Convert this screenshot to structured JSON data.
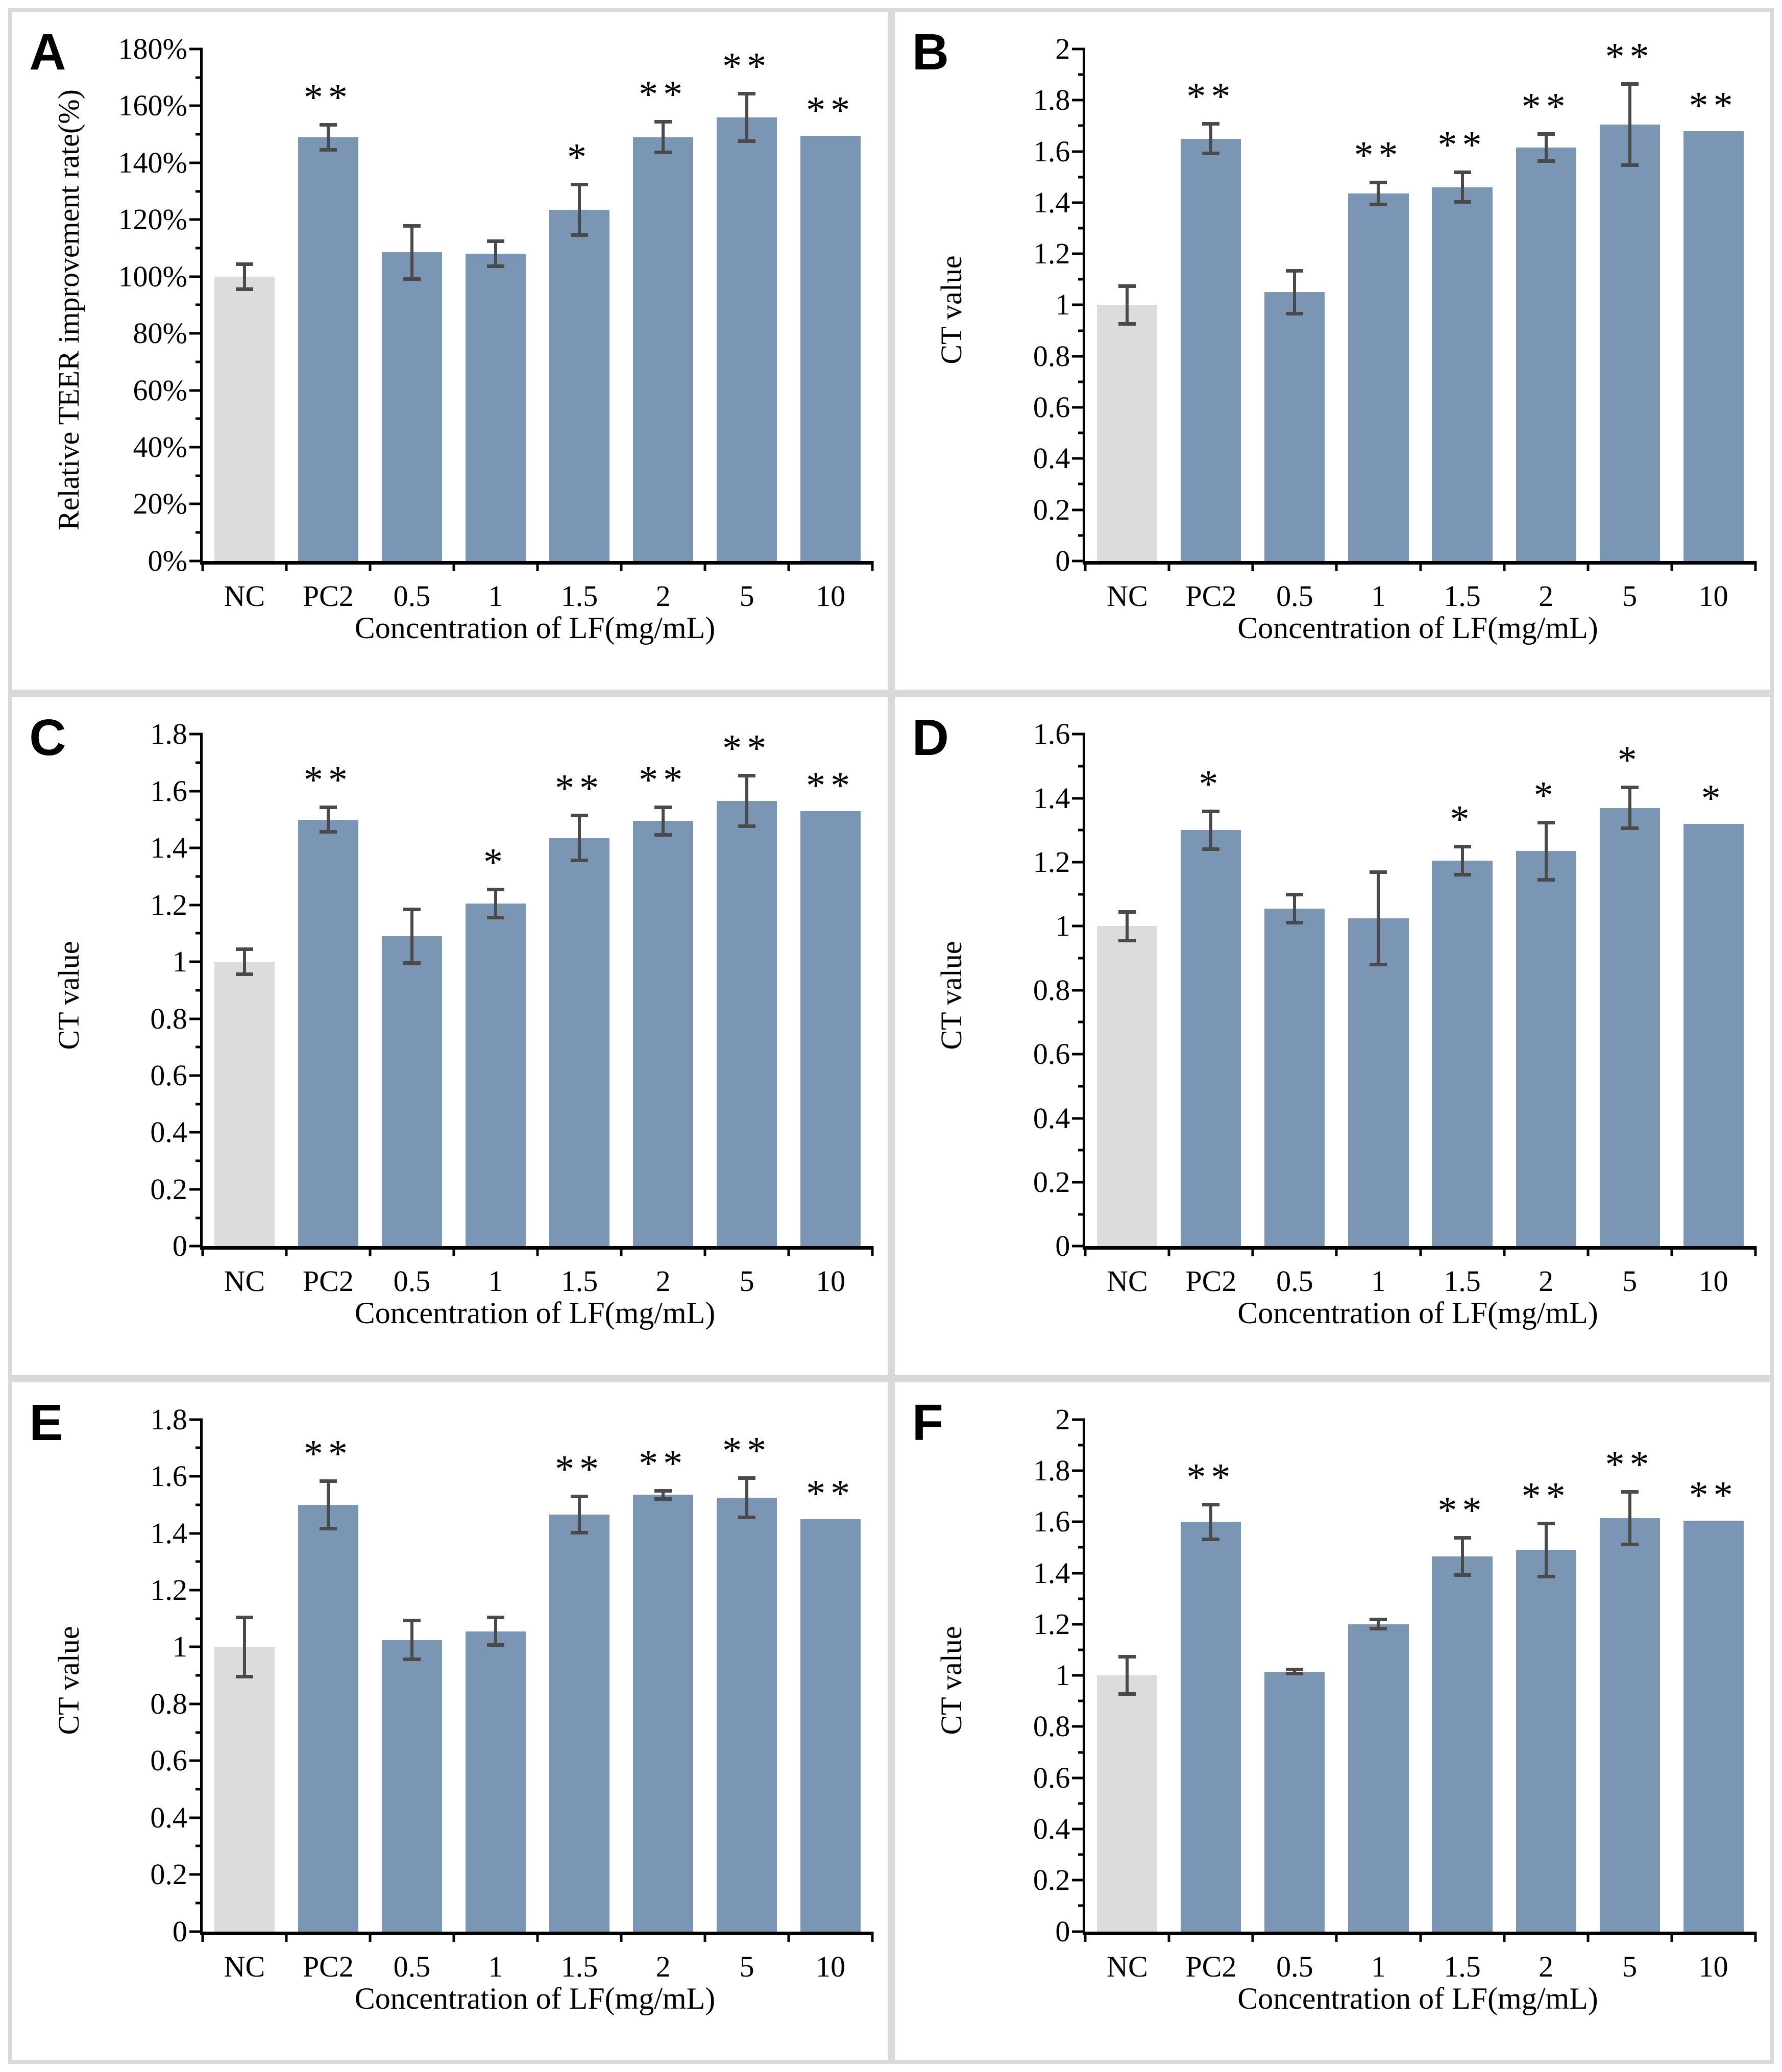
{
  "colors": {
    "bar": "#7b96b5",
    "nc_bar": "#dcdcdc",
    "error": "#4a4a4a",
    "axis": "#000000",
    "frame": "#d9d9d9"
  },
  "chart_data": [
    {
      "panel": "A",
      "type": "bar",
      "ylabel": "Relative TEER improvement rate(%)",
      "xlabel": "Concentration of LF(mg/mL)",
      "categories": [
        "NC",
        "PC2",
        "0.5",
        "1",
        "1.5",
        "2",
        "5",
        "10"
      ],
      "values": [
        100,
        149,
        108.5,
        108,
        123.5,
        149,
        156,
        149.5
      ],
      "errors": [
        5,
        5,
        10,
        5,
        9.5,
        6,
        9,
        null
      ],
      "sig": [
        "",
        "**",
        "",
        "",
        "*",
        "**",
        "**",
        "**"
      ],
      "ylim": [
        0,
        180
      ],
      "ytick_step": 20,
      "ytick_suffix": "%",
      "grid": false,
      "legend": null
    },
    {
      "panel": "B",
      "type": "bar",
      "ylabel": "CT value",
      "xlabel": "Concentration of LF(mg/mL)",
      "categories": [
        "NC",
        "PC2",
        "0.5",
        "1",
        "1.5",
        "2",
        "5",
        "10"
      ],
      "values": [
        1.0,
        1.65,
        1.05,
        1.435,
        1.46,
        1.615,
        1.705,
        1.68
      ],
      "errors": [
        0.08,
        0.065,
        0.09,
        0.05,
        0.065,
        0.06,
        0.165,
        null
      ],
      "sig": [
        "",
        "**",
        "",
        "**",
        "**",
        "**",
        "**",
        "**"
      ],
      "ylim": [
        0,
        2
      ],
      "ytick_step": 0.2,
      "ytick_suffix": "",
      "grid": false,
      "legend": null
    },
    {
      "panel": "C",
      "type": "bar",
      "ylabel": "CT value",
      "xlabel": "Concentration of LF(mg/mL)",
      "categories": [
        "NC",
        "PC2",
        "0.5",
        "1",
        "1.5",
        "2",
        "5",
        "10"
      ],
      "values": [
        1.0,
        1.5,
        1.09,
        1.205,
        1.435,
        1.495,
        1.565,
        1.53
      ],
      "errors": [
        0.05,
        0.05,
        0.1,
        0.055,
        0.085,
        0.055,
        0.095,
        null
      ],
      "sig": [
        "",
        "**",
        "",
        "*",
        "**",
        "**",
        "**",
        "**"
      ],
      "ylim": [
        0,
        1.8
      ],
      "ytick_step": 0.2,
      "ytick_suffix": "",
      "grid": false,
      "legend": null
    },
    {
      "panel": "D",
      "type": "bar",
      "ylabel": "CT value",
      "xlabel": "Concentration of LF(mg/mL)",
      "categories": [
        "NC",
        "PC2",
        "0.5",
        "1",
        "1.5",
        "2",
        "5",
        "10"
      ],
      "values": [
        1.0,
        1.3,
        1.055,
        1.025,
        1.205,
        1.235,
        1.37,
        1.32
      ],
      "errors": [
        0.05,
        0.065,
        0.05,
        0.15,
        0.05,
        0.095,
        0.07,
        null
      ],
      "sig": [
        "",
        "*",
        "",
        "",
        "*",
        "*",
        "*",
        "*"
      ],
      "ylim": [
        0,
        1.6
      ],
      "ytick_step": 0.2,
      "ytick_suffix": "",
      "grid": false,
      "legend": null
    },
    {
      "panel": "E",
      "type": "bar",
      "ylabel": "CT value",
      "xlabel": "Concentration of LF(mg/mL)",
      "categories": [
        "NC",
        "PC2",
        "0.5",
        "1",
        "1.5",
        "2",
        "5",
        "10"
      ],
      "values": [
        1.0,
        1.5,
        1.025,
        1.055,
        1.465,
        1.535,
        1.525,
        1.45
      ],
      "errors": [
        0.11,
        0.09,
        0.075,
        0.055,
        0.07,
        0.02,
        0.075,
        null
      ],
      "sig": [
        "",
        "**",
        "",
        "",
        "**",
        "**",
        "**",
        "**"
      ],
      "ylim": [
        0,
        1.8
      ],
      "ytick_step": 0.2,
      "ytick_suffix": "",
      "grid": false,
      "legend": null
    },
    {
      "panel": "F",
      "type": "bar",
      "ylabel": "CT value",
      "xlabel": "Concentration of LF(mg/mL)",
      "categories": [
        "NC",
        "PC2",
        "0.5",
        "1",
        "1.5",
        "2",
        "5",
        "10"
      ],
      "values": [
        1.0,
        1.6,
        1.015,
        1.2,
        1.465,
        1.49,
        1.615,
        1.605
      ],
      "errors": [
        0.08,
        0.075,
        0.015,
        0.025,
        0.08,
        0.11,
        0.11,
        null
      ],
      "sig": [
        "",
        "**",
        "",
        "",
        "**",
        "**",
        "**",
        "**"
      ],
      "ylim": [
        0,
        2
      ],
      "ytick_step": 0.2,
      "ytick_suffix": "",
      "grid": false,
      "legend": null
    }
  ]
}
